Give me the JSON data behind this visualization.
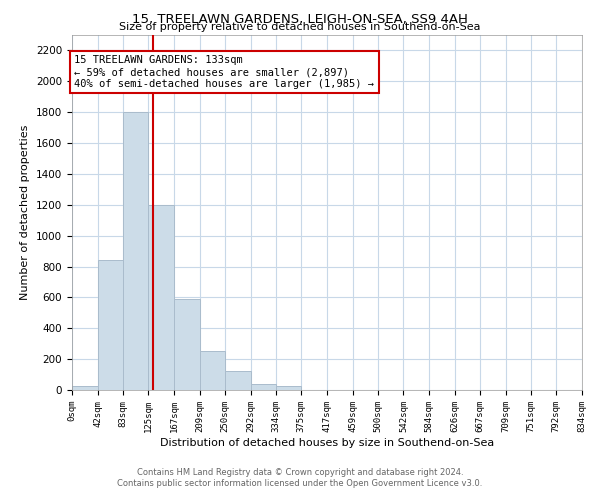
{
  "title1": "15, TREELAWN GARDENS, LEIGH-ON-SEA, SS9 4AH",
  "title2": "Size of property relative to detached houses in Southend-on-Sea",
  "xlabel": "Distribution of detached houses by size in Southend-on-Sea",
  "ylabel": "Number of detached properties",
  "bar_edges": [
    0,
    42,
    83,
    125,
    167,
    209,
    250,
    292,
    334,
    375,
    417,
    459,
    500,
    542,
    584,
    626,
    667,
    709,
    751,
    792,
    834
  ],
  "bar_heights": [
    25,
    840,
    1800,
    1200,
    590,
    255,
    120,
    40,
    25,
    0,
    0,
    0,
    0,
    0,
    0,
    0,
    0,
    0,
    0,
    0
  ],
  "bar_color": "#ccdce8",
  "bar_edge_color": "#aabccc",
  "vline_x": 133,
  "vline_color": "#cc0000",
  "annotation_title": "15 TREELAWN GARDENS: 133sqm",
  "annotation_line1": "← 59% of detached houses are smaller (2,897)",
  "annotation_line2": "40% of semi-detached houses are larger (1,985) →",
  "annotation_box_color": "#ffffff",
  "annotation_box_edge": "#cc0000",
  "tick_labels": [
    "0sqm",
    "42sqm",
    "83sqm",
    "125sqm",
    "167sqm",
    "209sqm",
    "250sqm",
    "292sqm",
    "334sqm",
    "375sqm",
    "417sqm",
    "459sqm",
    "500sqm",
    "542sqm",
    "584sqm",
    "626sqm",
    "667sqm",
    "709sqm",
    "751sqm",
    "792sqm",
    "834sqm"
  ],
  "ylim": [
    0,
    2300
  ],
  "yticks": [
    0,
    200,
    400,
    600,
    800,
    1000,
    1200,
    1400,
    1600,
    1800,
    2000,
    2200
  ],
  "footer1": "Contains HM Land Registry data © Crown copyright and database right 2024.",
  "footer2": "Contains public sector information licensed under the Open Government Licence v3.0.",
  "bg_color": "#ffffff",
  "grid_color": "#c8d8e8"
}
